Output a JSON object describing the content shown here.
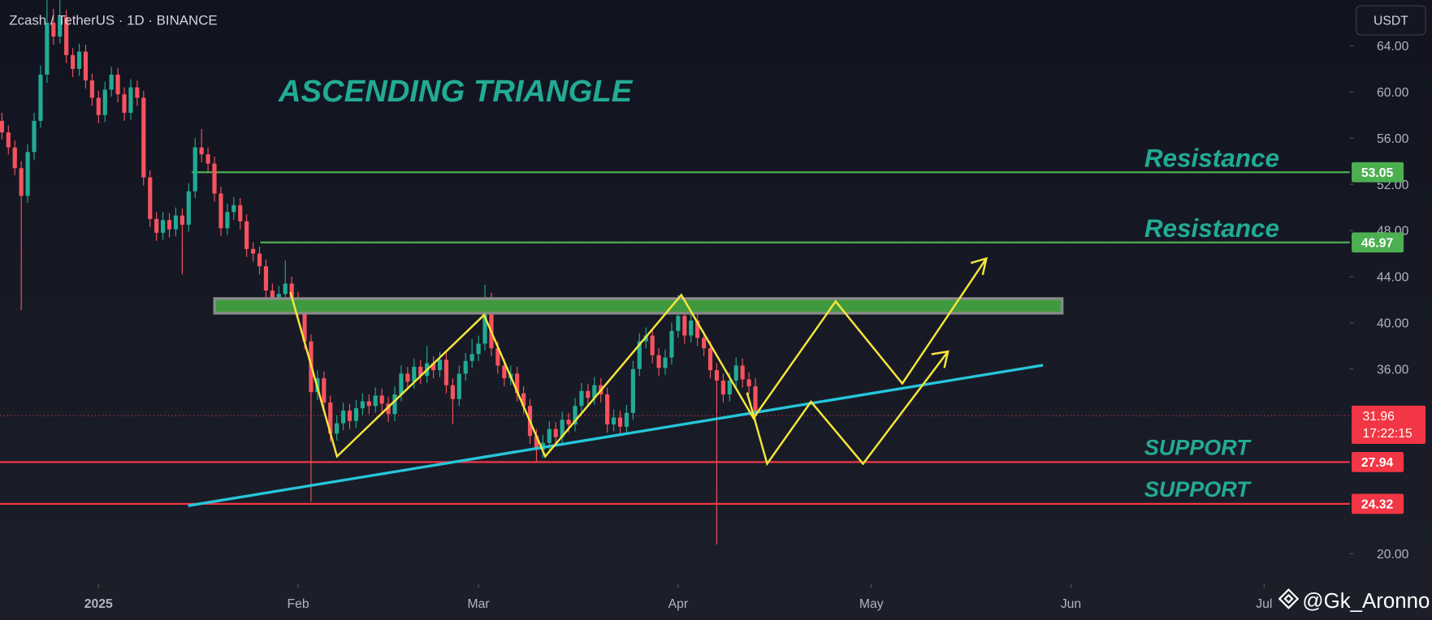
{
  "chart_data": {
    "type": "candlestick",
    "title": "Zcash / TetherUS · 1D · BINANCE",
    "currency": "USDT",
    "annotation": "ASCENDING TRIANGLE",
    "watermark": "@Gk_Aronno",
    "up_color": "#22ab94",
    "down_color": "#f7525f",
    "xlim": [
      -0.3,
      209.3
    ],
    "ylim": [
      17.36,
      67.95
    ],
    "xticks": [
      {
        "value": 15,
        "label": "2025"
      },
      {
        "value": 46,
        "label": "Feb"
      },
      {
        "value": 74,
        "label": "Mar"
      },
      {
        "value": 105,
        "label": "Apr"
      },
      {
        "value": 135,
        "label": "May"
      },
      {
        "value": 166,
        "label": "Jun"
      },
      {
        "value": 196,
        "label": "Jul"
      }
    ],
    "yticks": [
      {
        "value": 64,
        "label": "64.00"
      },
      {
        "value": 60,
        "label": "60.00"
      },
      {
        "value": 56,
        "label": "56.00"
      },
      {
        "value": 52,
        "label": "52.00"
      },
      {
        "value": 48,
        "label": "48.00"
      },
      {
        "value": 44,
        "label": "44.00"
      },
      {
        "value": 40,
        "label": "40.00"
      },
      {
        "value": 36,
        "label": "36.00"
      },
      {
        "value": 20,
        "label": "20.00"
      }
    ],
    "levels": [
      {
        "label": "Resistance",
        "value": 53.05,
        "color": "#4caf50"
      },
      {
        "label": "Resistance",
        "value": 46.97,
        "color": "#4caf50"
      },
      {
        "label": "SUPPORT",
        "value": 27.94,
        "color": "#f23645"
      },
      {
        "label": "SUPPORT",
        "value": 24.32,
        "color": "#f23645"
      }
    ],
    "current_price": {
      "value": 31.96,
      "countdown": "17:22:15",
      "color": "#f23645"
    },
    "x": [
      0,
      1,
      2,
      3,
      4,
      5,
      6,
      7,
      8,
      9,
      10,
      11,
      12,
      13,
      14,
      15,
      16,
      17,
      18,
      19,
      20,
      21,
      22,
      23,
      24,
      25,
      26,
      27,
      28,
      29,
      30,
      31,
      32,
      33,
      34,
      35,
      36,
      37,
      38,
      39,
      40,
      41,
      42,
      43,
      44,
      45,
      46,
      47,
      48,
      49,
      50,
      51,
      52,
      53,
      54,
      55,
      56,
      57,
      58,
      59,
      60,
      61,
      62,
      63,
      64,
      65,
      66,
      67,
      68,
      69,
      70,
      71,
      72,
      73,
      74,
      75,
      76,
      77,
      78,
      79,
      80,
      81,
      82,
      83,
      84,
      85,
      86,
      87,
      88,
      89,
      90,
      91,
      92,
      93,
      94,
      95,
      96,
      97,
      98,
      99,
      100,
      101,
      102,
      103,
      104,
      105,
      106,
      107,
      108,
      109,
      110,
      111,
      112,
      113,
      114,
      115,
      116,
      117
    ],
    "open": [
      57.5,
      56.5,
      55.2,
      53.4,
      51.0,
      54.8,
      57.5,
      61.5,
      66.0,
      64.8,
      66.5,
      63.2,
      62.0,
      63.5,
      61.0,
      59.5,
      58.0,
      60.2,
      61.5,
      59.8,
      58.2,
      60.4,
      59.5,
      52.6,
      49.0,
      47.8,
      48.9,
      48.1,
      49.3,
      48.5,
      51.4,
      55.2,
      54.6,
      53.8,
      51.2,
      48.2,
      49.6,
      50.2,
      48.8,
      46.4,
      46.0,
      44.9,
      42.8,
      41.8,
      42.5,
      43.4,
      42.1,
      41.3,
      38.4,
      34.0,
      35.2,
      33.1,
      30.4,
      31.3,
      32.4,
      31.5,
      32.6,
      33.2,
      32.8,
      33.7,
      33.0,
      32.1,
      33.8,
      35.6,
      34.9,
      36.2,
      35.4,
      36.5,
      35.9,
      36.8,
      34.6,
      33.4,
      35.6,
      36.7,
      37.3,
      38.2,
      41.2,
      37.8,
      36.3,
      35.2,
      35.6,
      33.9,
      32.8,
      30.2,
      29.0,
      29.6,
      30.8,
      30.1,
      31.6,
      31.2,
      32.8,
      34.1,
      33.5,
      34.6,
      33.8,
      31.2,
      31.8,
      31.0,
      32.2,
      36.0,
      38.4,
      38.9,
      37.2,
      36.1,
      37.0,
      39.3,
      40.6,
      38.9,
      40.2,
      38.7,
      37.8,
      35.9,
      35.0,
      33.8,
      35.0,
      36.3,
      35.1,
      34.5
    ],
    "high": [
      58.2,
      57.1,
      55.8,
      54.0,
      55.5,
      58.2,
      62.3,
      69.5,
      67.2,
      68.5,
      67.1,
      63.8,
      64.2,
      64.1,
      61.6,
      60.1,
      60.9,
      62.2,
      62.1,
      60.4,
      61.1,
      61.0,
      60.1,
      53.2,
      49.6,
      49.6,
      49.5,
      50.0,
      49.9,
      52.1,
      56.0,
      56.8,
      55.2,
      54.4,
      51.8,
      50.3,
      50.9,
      50.8,
      49.4,
      47.0,
      46.6,
      45.5,
      43.4,
      43.2,
      45.4,
      44.0,
      42.7,
      41.9,
      39.0,
      35.9,
      35.8,
      33.7,
      32.0,
      33.1,
      33.0,
      33.3,
      33.9,
      33.8,
      34.4,
      34.3,
      33.6,
      34.5,
      36.3,
      36.2,
      36.9,
      36.8,
      38.0,
      37.1,
      37.5,
      37.4,
      35.2,
      36.3,
      37.4,
      38.6,
      38.9,
      43.3,
      42.6,
      38.4,
      36.9,
      36.3,
      36.2,
      34.5,
      33.4,
      30.8,
      30.3,
      31.5,
      31.4,
      32.3,
      32.2,
      33.5,
      34.8,
      34.7,
      35.3,
      35.2,
      34.4,
      32.5,
      32.4,
      32.9,
      36.7,
      39.1,
      39.6,
      39.5,
      37.8,
      37.7,
      40.0,
      42.4,
      41.2,
      40.9,
      40.8,
      39.3,
      38.4,
      36.5,
      35.6,
      35.7,
      37.0,
      36.9,
      35.7,
      35.2
    ],
    "low": [
      55.9,
      54.6,
      52.8,
      41.1,
      50.4,
      54.1,
      56.9,
      60.8,
      64.1,
      64.2,
      62.5,
      61.3,
      61.4,
      60.3,
      58.8,
      57.3,
      57.4,
      59.6,
      59.1,
      57.5,
      57.6,
      58.8,
      51.9,
      48.3,
      47.1,
      47.2,
      47.4,
      47.5,
      44.2,
      47.9,
      50.8,
      53.9,
      53.1,
      50.5,
      47.5,
      47.6,
      48.9,
      48.1,
      45.7,
      45.3,
      44.2,
      42.1,
      41.1,
      41.2,
      41.9,
      41.4,
      40.6,
      37.7,
      24.5,
      33.3,
      32.4,
      29.7,
      29.8,
      30.7,
      30.8,
      30.9,
      32.0,
      32.1,
      32.2,
      32.3,
      31.4,
      31.5,
      33.2,
      34.2,
      34.3,
      34.7,
      34.8,
      35.2,
      35.3,
      33.9,
      31.2,
      32.8,
      35.0,
      36.1,
      36.7,
      37.6,
      37.1,
      35.6,
      34.5,
      34.6,
      33.2,
      32.1,
      29.5,
      28.0,
      28.3,
      29.0,
      29.4,
      29.5,
      30.5,
      30.6,
      32.2,
      32.8,
      32.9,
      33.1,
      30.5,
      30.6,
      30.3,
      30.4,
      31.6,
      35.4,
      37.8,
      36.5,
      35.4,
      35.5,
      36.4,
      38.7,
      38.2,
      38.3,
      38.0,
      37.1,
      35.2,
      20.8,
      33.1,
      33.2,
      34.4,
      34.4,
      33.8,
      31.4
    ],
    "close": [
      56.5,
      55.2,
      53.4,
      51.0,
      54.8,
      57.5,
      61.5,
      66.0,
      64.8,
      66.5,
      63.2,
      62.0,
      63.5,
      61.0,
      59.5,
      58.0,
      60.2,
      61.5,
      59.8,
      58.2,
      60.4,
      59.5,
      52.6,
      49.0,
      47.8,
      48.9,
      48.1,
      49.3,
      48.5,
      51.4,
      55.2,
      54.6,
      53.8,
      51.2,
      48.2,
      49.6,
      50.2,
      48.8,
      46.4,
      46.0,
      44.9,
      42.8,
      41.8,
      42.5,
      43.4,
      42.1,
      41.3,
      38.4,
      34.0,
      35.2,
      33.1,
      30.4,
      31.3,
      32.4,
      31.5,
      32.6,
      33.2,
      32.8,
      33.7,
      33.0,
      32.1,
      33.8,
      35.6,
      34.9,
      36.2,
      35.4,
      36.5,
      35.9,
      36.8,
      34.6,
      33.4,
      35.6,
      36.7,
      37.3,
      38.2,
      41.2,
      37.8,
      36.3,
      35.2,
      35.6,
      33.9,
      32.8,
      30.2,
      29.0,
      29.6,
      30.8,
      30.1,
      31.6,
      31.2,
      32.8,
      34.1,
      33.5,
      34.6,
      33.8,
      31.2,
      31.8,
      31.0,
      32.2,
      36.0,
      38.4,
      38.9,
      37.2,
      36.1,
      37.0,
      39.3,
      40.6,
      38.9,
      40.2,
      38.7,
      37.8,
      35.9,
      35.0,
      33.8,
      35.0,
      36.3,
      35.1,
      34.5,
      31.96
    ]
  }
}
